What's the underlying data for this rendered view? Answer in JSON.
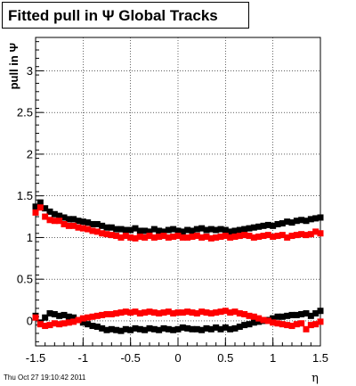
{
  "title": "Fitted pull in  Ψ   Global Tracks",
  "footer": "Thu Oct 27 19:10:42 2011",
  "chart_data": {
    "type": "scatter",
    "title": "Fitted pull in  Ψ   Global Tracks",
    "xlabel": "η",
    "ylabel": "pull in Ψ",
    "xlim": [
      -1.5,
      1.5
    ],
    "ylim": [
      -0.3,
      3.4
    ],
    "xticks": [
      -1.5,
      -1,
      -0.5,
      0,
      0.5,
      1,
      1.5
    ],
    "xtick_labels": [
      "-1.5",
      "-1",
      "-0.5",
      "0",
      "0.5",
      "1",
      "1.5"
    ],
    "yticks": [
      0,
      0.5,
      1,
      1.5,
      2,
      2.5,
      3
    ],
    "ytick_labels": [
      "0",
      "0.5",
      "1",
      "1.5",
      "2",
      "2.5",
      "3"
    ],
    "grid": true,
    "marker": "square",
    "series": [
      {
        "color": "#000000",
        "x": [
          -1.5,
          -1.45,
          -1.4,
          -1.35,
          -1.3,
          -1.25,
          -1.2,
          -1.15,
          -1.1,
          -1.05,
          -1.0,
          -0.95,
          -0.9,
          -0.85,
          -0.8,
          -0.75,
          -0.7,
          -0.65,
          -0.6,
          -0.55,
          -0.5,
          -0.45,
          -0.4,
          -0.35,
          -0.3,
          -0.25,
          -0.2,
          -0.15,
          -0.1,
          -0.05,
          0.0,
          0.05,
          0.1,
          0.15,
          0.2,
          0.25,
          0.3,
          0.35,
          0.4,
          0.45,
          0.5,
          0.55,
          0.6,
          0.65,
          0.7,
          0.75,
          0.8,
          0.85,
          0.9,
          0.95,
          1.0,
          1.05,
          1.1,
          1.15,
          1.2,
          1.25,
          1.3,
          1.35,
          1.4,
          1.45,
          1.5
        ],
        "y": [
          1.37,
          1.42,
          1.35,
          1.31,
          1.28,
          1.26,
          1.24,
          1.22,
          1.22,
          1.2,
          1.19,
          1.18,
          1.16,
          1.16,
          1.14,
          1.12,
          1.12,
          1.1,
          1.1,
          1.09,
          1.09,
          1.11,
          1.08,
          1.08,
          1.07,
          1.1,
          1.08,
          1.07,
          1.09,
          1.1,
          1.08,
          1.07,
          1.09,
          1.08,
          1.1,
          1.11,
          1.09,
          1.1,
          1.09,
          1.1,
          1.09,
          1.07,
          1.08,
          1.09,
          1.1,
          1.11,
          1.12,
          1.13,
          1.14,
          1.15,
          1.14,
          1.16,
          1.17,
          1.19,
          1.18,
          1.2,
          1.21,
          1.2,
          1.22,
          1.23,
          1.24
        ]
      },
      {
        "color": "#ff0000",
        "x": [
          -1.5,
          -1.45,
          -1.4,
          -1.35,
          -1.3,
          -1.25,
          -1.2,
          -1.15,
          -1.1,
          -1.05,
          -1.0,
          -0.95,
          -0.9,
          -0.85,
          -0.8,
          -0.75,
          -0.7,
          -0.65,
          -0.6,
          -0.55,
          -0.5,
          -0.45,
          -0.4,
          -0.35,
          -0.3,
          -0.25,
          -0.2,
          -0.15,
          -0.1,
          -0.05,
          0.0,
          0.05,
          0.1,
          0.15,
          0.2,
          0.25,
          0.3,
          0.35,
          0.4,
          0.45,
          0.5,
          0.55,
          0.6,
          0.65,
          0.7,
          0.75,
          0.8,
          0.85,
          0.9,
          0.95,
          1.0,
          1.05,
          1.1,
          1.15,
          1.2,
          1.25,
          1.3,
          1.35,
          1.4,
          1.45,
          1.5
        ],
        "y": [
          1.3,
          1.36,
          1.25,
          1.21,
          1.2,
          1.2,
          1.16,
          1.14,
          1.14,
          1.12,
          1.11,
          1.1,
          1.08,
          1.07,
          1.05,
          1.04,
          1.03,
          1.02,
          1.0,
          1.02,
          1.0,
          0.99,
          1.01,
          1.0,
          1.02,
          1.0,
          1.01,
          1.02,
          1.0,
          1.01,
          1.02,
          1.0,
          1.0,
          1.01,
          1.02,
          1.0,
          1.01,
          0.99,
          1.0,
          1.01,
          1.02,
          1.0,
          1.01,
          1.02,
          1.03,
          1.02,
          1.0,
          1.01,
          1.02,
          1.03,
          1.01,
          1.02,
          1.03,
          1.0,
          1.02,
          1.03,
          1.04,
          1.03,
          1.04,
          1.07,
          1.05
        ]
      },
      {
        "color": "#000000",
        "x": [
          -1.5,
          -1.45,
          -1.4,
          -1.35,
          -1.3,
          -1.25,
          -1.2,
          -1.15,
          -1.1,
          -1.05,
          -1.0,
          -0.95,
          -0.9,
          -0.85,
          -0.8,
          -0.75,
          -0.7,
          -0.65,
          -0.6,
          -0.55,
          -0.5,
          -0.45,
          -0.4,
          -0.35,
          -0.3,
          -0.25,
          -0.2,
          -0.15,
          -0.1,
          -0.05,
          0.0,
          0.05,
          0.1,
          0.15,
          0.2,
          0.25,
          0.3,
          0.35,
          0.4,
          0.45,
          0.5,
          0.55,
          0.6,
          0.65,
          0.7,
          0.75,
          0.8,
          0.85,
          0.9,
          0.95,
          1.0,
          1.05,
          1.1,
          1.15,
          1.2,
          1.25,
          1.3,
          1.35,
          1.4,
          1.45,
          1.5
        ],
        "y": [
          0.06,
          -0.02,
          0.04,
          0.09,
          0.08,
          0.06,
          0.07,
          0.05,
          0.04,
          0.01,
          -0.02,
          -0.04,
          -0.06,
          -0.07,
          -0.09,
          -0.11,
          -0.1,
          -0.11,
          -0.12,
          -0.1,
          -0.11,
          -0.09,
          -0.1,
          -0.11,
          -0.09,
          -0.1,
          -0.11,
          -0.09,
          -0.1,
          -0.11,
          -0.1,
          -0.08,
          -0.09,
          -0.1,
          -0.1,
          -0.11,
          -0.09,
          -0.1,
          -0.08,
          -0.1,
          -0.08,
          -0.1,
          -0.09,
          -0.07,
          -0.05,
          -0.04,
          -0.02,
          -0.01,
          0.0,
          0.01,
          0.03,
          0.05,
          0.05,
          0.06,
          0.07,
          0.07,
          0.08,
          0.09,
          0.06,
          0.09,
          0.12
        ]
      },
      {
        "color": "#ff0000",
        "x": [
          -1.5,
          -1.45,
          -1.4,
          -1.35,
          -1.3,
          -1.25,
          -1.2,
          -1.15,
          -1.1,
          -1.05,
          -1.0,
          -0.95,
          -0.9,
          -0.85,
          -0.8,
          -0.75,
          -0.7,
          -0.65,
          -0.6,
          -0.55,
          -0.5,
          -0.45,
          -0.4,
          -0.35,
          -0.3,
          -0.25,
          -0.2,
          -0.15,
          -0.1,
          -0.05,
          0.0,
          0.05,
          0.1,
          0.15,
          0.2,
          0.25,
          0.3,
          0.35,
          0.4,
          0.45,
          0.5,
          0.55,
          0.6,
          0.65,
          0.7,
          0.75,
          0.8,
          0.85,
          0.9,
          0.95,
          1.0,
          1.05,
          1.1,
          1.15,
          1.2,
          1.25,
          1.3,
          1.35,
          1.4,
          1.45,
          1.5
        ],
        "y": [
          0.04,
          -0.04,
          -0.06,
          -0.05,
          -0.03,
          -0.04,
          -0.03,
          -0.02,
          -0.01,
          0.01,
          0.03,
          0.04,
          0.05,
          0.06,
          0.07,
          0.08,
          0.08,
          0.09,
          0.1,
          0.11,
          0.1,
          0.11,
          0.09,
          0.1,
          0.11,
          0.1,
          0.09,
          0.1,
          0.11,
          0.09,
          0.1,
          0.1,
          0.11,
          0.1,
          0.09,
          0.11,
          0.1,
          0.09,
          0.1,
          0.11,
          0.12,
          0.1,
          0.11,
          0.09,
          0.08,
          0.06,
          0.05,
          0.03,
          0.01,
          0.0,
          -0.02,
          -0.03,
          -0.04,
          -0.05,
          -0.06,
          -0.04,
          -0.03,
          -0.1,
          -0.05,
          -0.04,
          -0.01
        ]
      }
    ]
  }
}
